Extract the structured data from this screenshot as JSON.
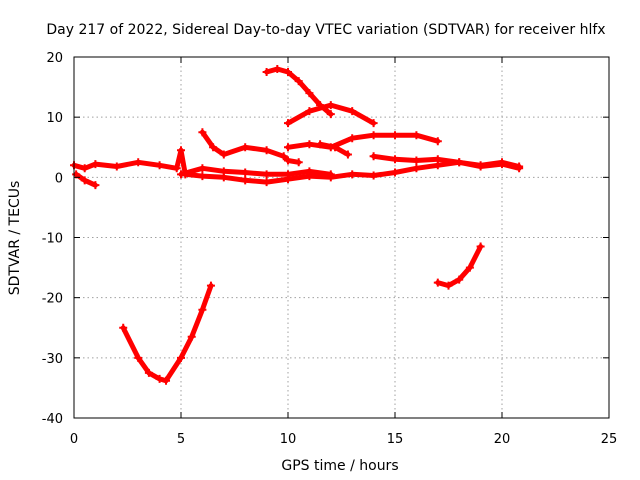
{
  "chart_data": {
    "type": "scatter",
    "title": "Day 217 of 2022, Sidereal Day-to-day VTEC variation (SDTVAR) for receiver hlfx",
    "xlabel": "GPS time / hours",
    "ylabel": "SDTVAR / TECUs",
    "xlim": [
      0,
      25
    ],
    "ylim": [
      -40,
      20
    ],
    "xticks": [
      0,
      5,
      10,
      15,
      20,
      25
    ],
    "yticks": [
      -40,
      -30,
      -20,
      -10,
      0,
      10,
      20
    ],
    "grid": true,
    "legend": "none",
    "series_color": "#ff0000",
    "series": [
      {
        "name": "track-1",
        "x": [
          0.0,
          0.5,
          1.0,
          2.0,
          3.0,
          4.0,
          4.8,
          5.0,
          5.2,
          6.0,
          7.0,
          8.0,
          9.0,
          10.0,
          11.0,
          12.0,
          13.0,
          14.0,
          15.0,
          16.0,
          17.0,
          18.0,
          19.0,
          20.0,
          20.8
        ],
        "y": [
          2.0,
          1.5,
          2.2,
          1.8,
          2.5,
          2.0,
          1.5,
          4.5,
          0.5,
          0.2,
          0.0,
          -0.5,
          -0.8,
          -0.3,
          0.2,
          0.0,
          0.5,
          0.3,
          0.8,
          1.5,
          2.0,
          2.5,
          1.8,
          2.2,
          1.5
        ]
      },
      {
        "name": "track-2",
        "x": [
          0.1,
          0.5,
          1.0
        ],
        "y": [
          0.5,
          -0.5,
          -1.3
        ]
      },
      {
        "name": "track-3",
        "x": [
          6.0,
          6.5,
          7.0,
          8.0,
          9.0,
          9.8,
          10.0,
          10.5
        ],
        "y": [
          7.5,
          5.0,
          3.8,
          5.0,
          4.5,
          3.5,
          2.8,
          2.5
        ]
      },
      {
        "name": "track-4",
        "x": [
          9.0,
          9.5,
          10.0,
          10.5,
          11.0,
          11.5,
          12.0
        ],
        "y": [
          17.5,
          18.0,
          17.5,
          16.0,
          14.0,
          12.0,
          10.5
        ]
      },
      {
        "name": "track-5",
        "x": [
          10.0,
          11.0,
          12.0,
          13.0,
          14.0
        ],
        "y": [
          9.0,
          11.0,
          12.0,
          11.0,
          9.0
        ]
      },
      {
        "name": "track-6",
        "x": [
          10.0,
          11.0,
          12.0,
          13.0,
          14.0,
          15.0,
          16.0,
          17.0
        ],
        "y": [
          5.0,
          5.5,
          5.0,
          6.5,
          7.0,
          7.0,
          7.0,
          6.0
        ]
      },
      {
        "name": "track-7",
        "x": [
          11.5,
          12.2,
          12.8
        ],
        "y": [
          5.5,
          5.0,
          3.8
        ]
      },
      {
        "name": "track-8",
        "x": [
          14.0,
          15.0,
          16.0,
          17.0,
          18.0,
          19.0,
          20.0,
          20.8
        ],
        "y": [
          3.5,
          3.0,
          2.8,
          3.0,
          2.5,
          2.0,
          2.5,
          1.8
        ]
      },
      {
        "name": "track-9",
        "x": [
          5.0,
          6.0,
          7.0,
          8.0,
          9.0,
          10.0,
          11.0,
          12.0
        ],
        "y": [
          0.5,
          1.5,
          1.0,
          0.8,
          0.5,
          0.5,
          1.0,
          0.5
        ]
      },
      {
        "name": "track-10",
        "x": [
          2.3,
          3.0,
          3.5,
          4.0,
          4.3,
          5.0,
          5.5,
          6.0,
          6.4
        ],
        "y": [
          -25.0,
          -30.0,
          -32.5,
          -33.5,
          -33.8,
          -30.0,
          -26.5,
          -22.0,
          -18.0
        ]
      },
      {
        "name": "track-11",
        "x": [
          17.0,
          17.5,
          18.0,
          18.5,
          19.0
        ],
        "y": [
          -17.5,
          -18.0,
          -17.0,
          -15.0,
          -11.5
        ]
      }
    ]
  }
}
